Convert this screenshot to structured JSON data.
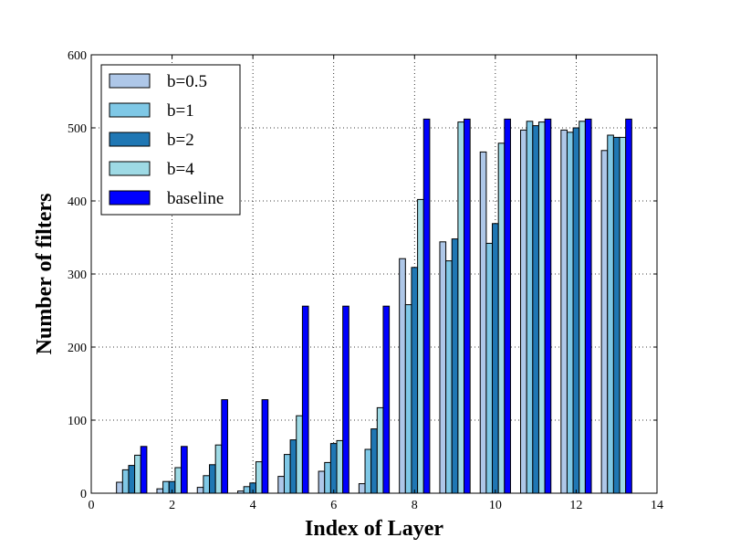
{
  "chart_data": {
    "type": "bar",
    "xlabel": "Index of Layer",
    "ylabel": "Number of filters",
    "xlim": [
      0,
      14
    ],
    "ylim": [
      0,
      600
    ],
    "xticks": [
      0,
      2,
      4,
      6,
      8,
      10,
      12,
      14
    ],
    "yticks": [
      0,
      100,
      200,
      300,
      400,
      500,
      600
    ],
    "grid": true,
    "legend_position": "top-left",
    "categories": [
      1,
      2,
      3,
      4,
      5,
      6,
      7,
      8,
      9,
      10,
      11,
      12,
      13
    ],
    "series": [
      {
        "name": "b=0.5",
        "color": "#aec7e8",
        "values": [
          15,
          6,
          8,
          3,
          23,
          30,
          13,
          321,
          344,
          467,
          497,
          497,
          469
        ]
      },
      {
        "name": "b=1",
        "color": "#7fc8e6",
        "values": [
          32,
          16,
          24,
          9,
          53,
          42,
          60,
          258,
          318,
          342,
          509,
          494,
          490
        ]
      },
      {
        "name": "b=2",
        "color": "#1f77b4",
        "values": [
          38,
          16,
          39,
          14,
          73,
          68,
          88,
          309,
          348,
          369,
          503,
          500,
          487
        ]
      },
      {
        "name": "b=4",
        "color": "#9edae5",
        "values": [
          52,
          35,
          66,
          43,
          106,
          72,
          117,
          402,
          508,
          479,
          508,
          509,
          487
        ]
      },
      {
        "name": "baseline",
        "color": "#0000ff",
        "values": [
          64,
          64,
          128,
          128,
          256,
          256,
          256,
          512,
          512,
          512,
          512,
          512,
          512
        ]
      }
    ]
  }
}
